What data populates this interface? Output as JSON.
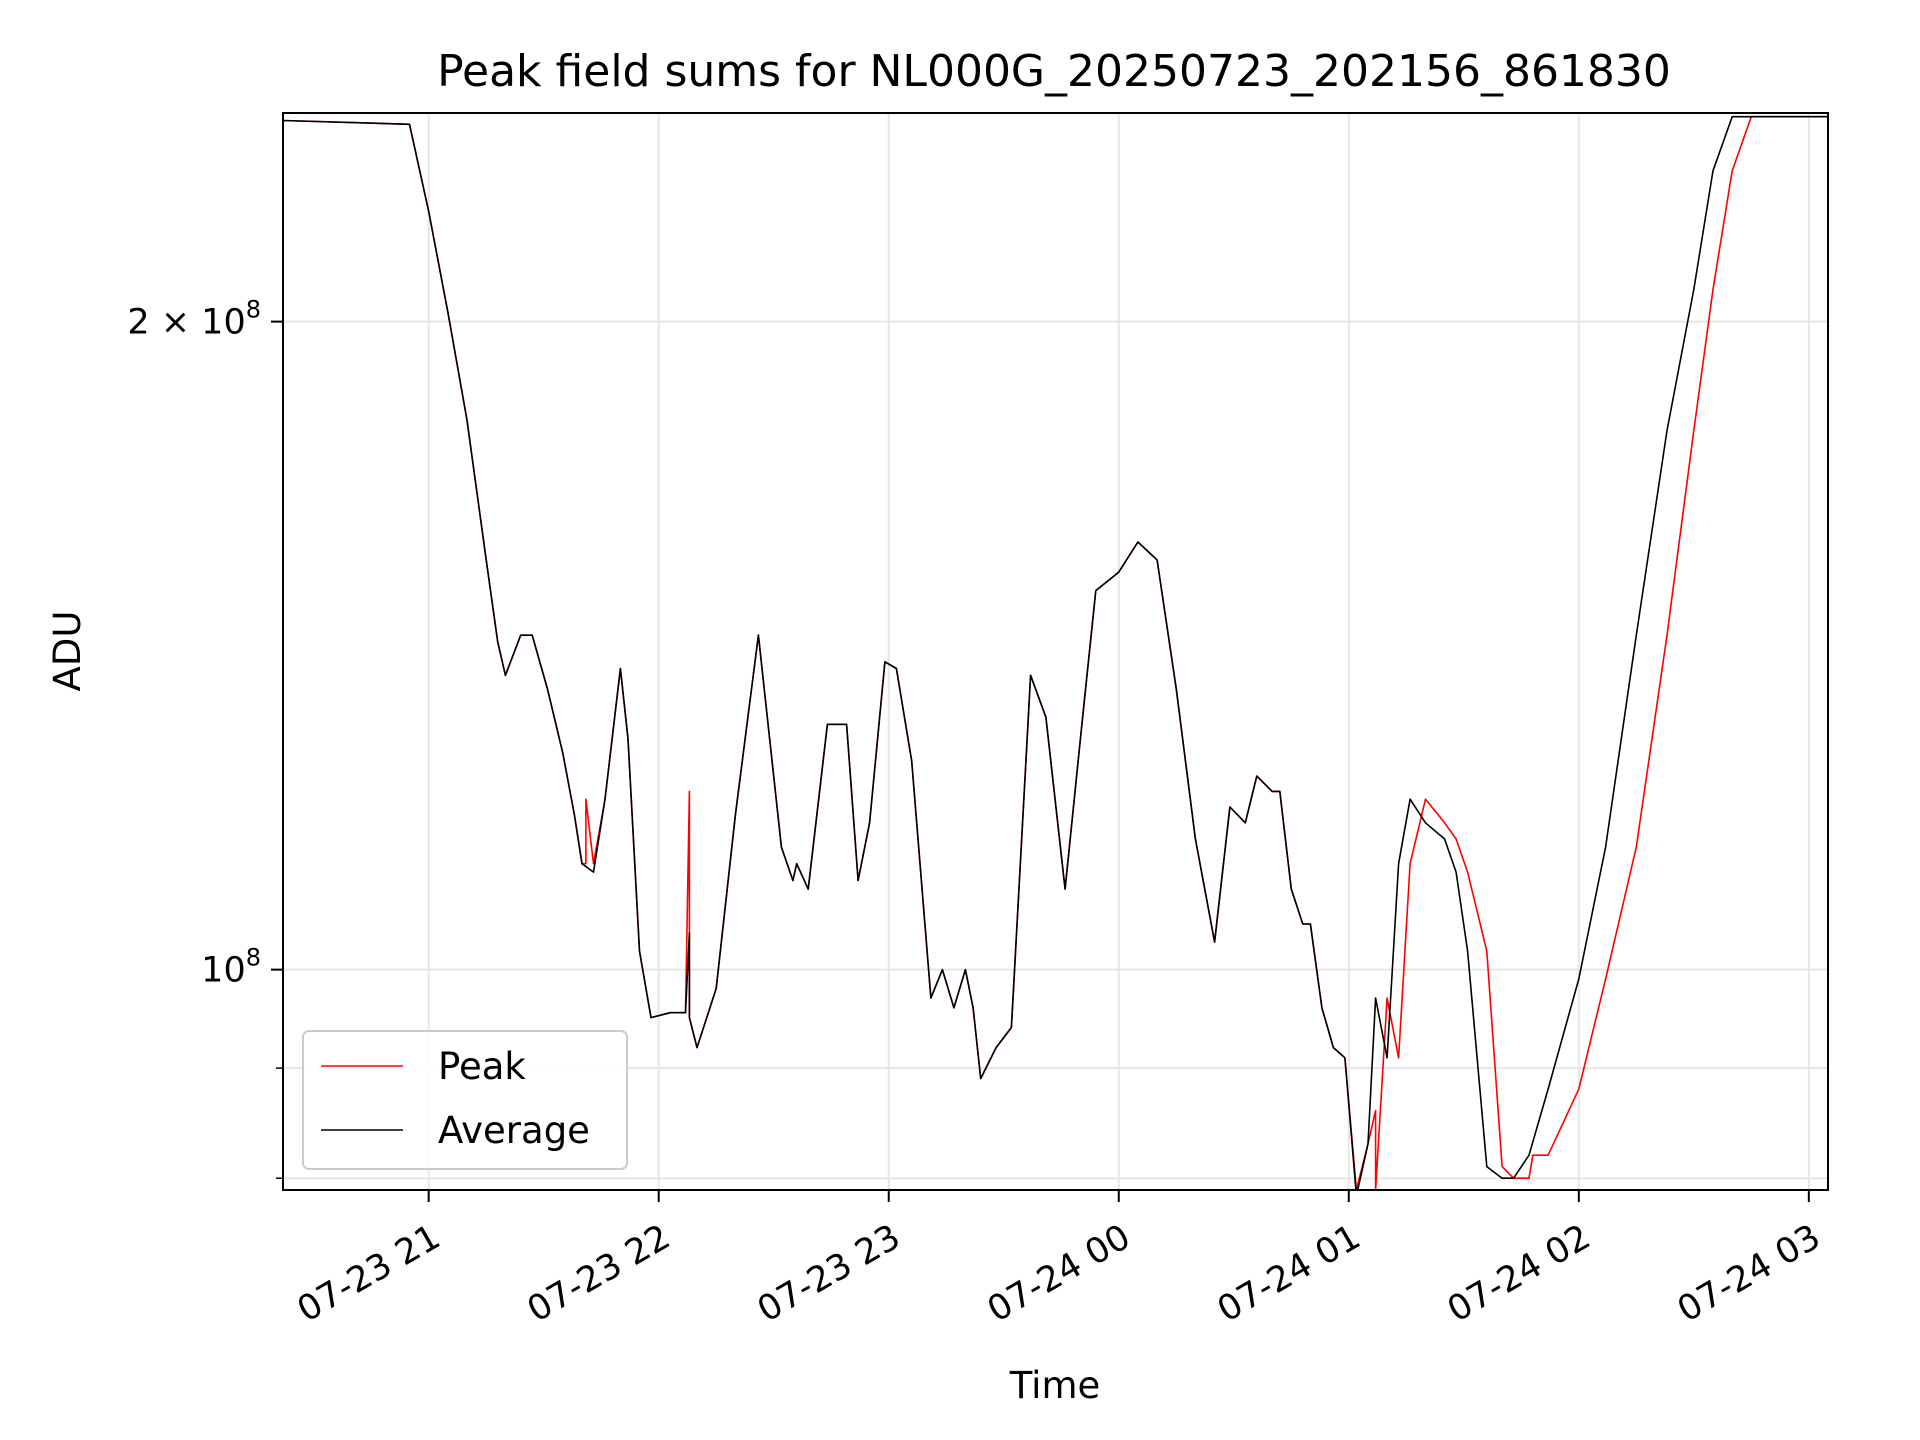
{
  "chart_data": {
    "type": "line",
    "title": "Peak field sums for NL000G_20250723_202156_861830",
    "xlabel": "Time",
    "ylabel": "ADU",
    "y_scale": "log",
    "ylim": [
      79000000,
      250000000
    ],
    "xlim": [
      "2025-07-23 20:22",
      "2025-07-24 03:05"
    ],
    "grid": true,
    "legend_position": "lower-left",
    "x_ticks": [
      {
        "t": "2025-07-23 21:00",
        "label": "07-23 21"
      },
      {
        "t": "2025-07-23 22:00",
        "label": "07-23 22"
      },
      {
        "t": "2025-07-23 23:00",
        "label": "07-23 23"
      },
      {
        "t": "2025-07-24 00:00",
        "label": "07-24 00"
      },
      {
        "t": "2025-07-24 01:00",
        "label": "07-24 01"
      },
      {
        "t": "2025-07-24 02:00",
        "label": "07-24 02"
      },
      {
        "t": "2025-07-24 03:00",
        "label": "07-24 03"
      }
    ],
    "y_major_ticks": [
      {
        "value": 100000000,
        "base": "10",
        "exp": "8"
      },
      {
        "value": 200000000,
        "base": "2 × 10",
        "exp": "8"
      }
    ],
    "y_minor_ticks": [
      80000000,
      90000000
    ],
    "series": [
      {
        "name": "Peak",
        "color": "#ff0000",
        "x": [
          "2025-07-23 20:22",
          "2025-07-23 20:55",
          "2025-07-23 21:00",
          "2025-07-23 21:05",
          "2025-07-23 21:10",
          "2025-07-23 21:15",
          "2025-07-23 21:18",
          "2025-07-23 21:20",
          "2025-07-23 21:24",
          "2025-07-23 21:27",
          "2025-07-23 21:31",
          "2025-07-23 21:35",
          "2025-07-23 21:38",
          "2025-07-23 21:40",
          "2025-07-23 21:41",
          "2025-07-23 21:41",
          "2025-07-23 21:43",
          "2025-07-23 21:46",
          "2025-07-23 21:50",
          "2025-07-23 21:52",
          "2025-07-23 21:55",
          "2025-07-23 21:58",
          "2025-07-23 22:03",
          "2025-07-23 22:07",
          "2025-07-23 22:08",
          "2025-07-23 22:08",
          "2025-07-23 22:10",
          "2025-07-23 22:15",
          "2025-07-23 22:20",
          "2025-07-23 22:26",
          "2025-07-23 22:32",
          "2025-07-23 22:35",
          "2025-07-23 22:36",
          "2025-07-23 22:39",
          "2025-07-23 22:44",
          "2025-07-23 22:49",
          "2025-07-23 22:52",
          "2025-07-23 22:55",
          "2025-07-23 22:59",
          "2025-07-23 23:02",
          "2025-07-23 23:06",
          "2025-07-23 23:11",
          "2025-07-23 23:14",
          "2025-07-23 23:17",
          "2025-07-23 23:20",
          "2025-07-23 23:22",
          "2025-07-23 23:24",
          "2025-07-23 23:28",
          "2025-07-23 23:32",
          "2025-07-23 23:37",
          "2025-07-23 23:41",
          "2025-07-23 23:46",
          "2025-07-23 23:50",
          "2025-07-23 23:54",
          "2025-07-24 00:00",
          "2025-07-24 00:05",
          "2025-07-24 00:10",
          "2025-07-24 00:15",
          "2025-07-24 00:20",
          "2025-07-24 00:25",
          "2025-07-24 00:29",
          "2025-07-24 00:33",
          "2025-07-24 00:36",
          "2025-07-24 00:40",
          "2025-07-24 00:42",
          "2025-07-24 00:45",
          "2025-07-24 00:48",
          "2025-07-24 00:50",
          "2025-07-24 00:53",
          "2025-07-24 00:56",
          "2025-07-24 00:59",
          "2025-07-24 01:02",
          "2025-07-24 01:05",
          "2025-07-24 01:07",
          "2025-07-24 01:07",
          "2025-07-24 01:10",
          "2025-07-24 01:13",
          "2025-07-24 01:16",
          "2025-07-24 01:20",
          "2025-07-24 01:25",
          "2025-07-24 01:28",
          "2025-07-24 01:31",
          "2025-07-24 01:36",
          "2025-07-24 01:40",
          "2025-07-24 01:43",
          "2025-07-24 01:47",
          "2025-07-24 01:48",
          "2025-07-24 01:52",
          "2025-07-24 02:00",
          "2025-07-24 02:07",
          "2025-07-24 02:15",
          "2025-07-24 02:23",
          "2025-07-24 02:30",
          "2025-07-24 02:35",
          "2025-07-24 02:40",
          "2025-07-24 02:45",
          "2025-07-24 03:05"
        ],
        "y": [
          248000000,
          247000000,
          225000000,
          202000000,
          180000000,
          155000000,
          142000000,
          137000000,
          143000000,
          143000000,
          135000000,
          126000000,
          118000000,
          112000000,
          112000000,
          120000000,
          112000000,
          120000000,
          138000000,
          128000000,
          102000000,
          95000000,
          95500000,
          95500000,
          121000000,
          95000000,
          92000000,
          98000000,
          118000000,
          143000000,
          114000000,
          110000000,
          112000000,
          109000000,
          130000000,
          130000000,
          110000000,
          117000000,
          139000000,
          138000000,
          125000000,
          97000000,
          100000000,
          96000000,
          100000000,
          96000000,
          89000000,
          92000000,
          94000000,
          137000000,
          131000000,
          109000000,
          128000000,
          150000000,
          153000000,
          158000000,
          155000000,
          135000000,
          115000000,
          103000000,
          119000000,
          117000000,
          123000000,
          121000000,
          121000000,
          109000000,
          105000000,
          105000000,
          96000000,
          92000000,
          91000000,
          79000000,
          83000000,
          86000000,
          79000000,
          97000000,
          91000000,
          112000000,
          120000000,
          117000000,
          115000000,
          111000000,
          102000000,
          81000000,
          80000000,
          80000000,
          82000000,
          82000000,
          88000000,
          99000000,
          114000000,
          143000000,
          178000000,
          207000000,
          235000000,
          249000000,
          249000000
        ]
      },
      {
        "name": "Average",
        "color": "#000000",
        "x": [
          "2025-07-23 20:22",
          "2025-07-23 20:55",
          "2025-07-23 21:00",
          "2025-07-23 21:05",
          "2025-07-23 21:10",
          "2025-07-23 21:15",
          "2025-07-23 21:18",
          "2025-07-23 21:20",
          "2025-07-23 21:24",
          "2025-07-23 21:27",
          "2025-07-23 21:31",
          "2025-07-23 21:35",
          "2025-07-23 21:38",
          "2025-07-23 21:40",
          "2025-07-23 21:43",
          "2025-07-23 21:46",
          "2025-07-23 21:50",
          "2025-07-23 21:52",
          "2025-07-23 21:55",
          "2025-07-23 21:58",
          "2025-07-23 22:03",
          "2025-07-23 22:07",
          "2025-07-23 22:08",
          "2025-07-23 22:08",
          "2025-07-23 22:10",
          "2025-07-23 22:15",
          "2025-07-23 22:20",
          "2025-07-23 22:26",
          "2025-07-23 22:32",
          "2025-07-23 22:35",
          "2025-07-23 22:36",
          "2025-07-23 22:39",
          "2025-07-23 22:44",
          "2025-07-23 22:49",
          "2025-07-23 22:52",
          "2025-07-23 22:55",
          "2025-07-23 22:59",
          "2025-07-23 23:02",
          "2025-07-23 23:06",
          "2025-07-23 23:11",
          "2025-07-23 23:14",
          "2025-07-23 23:17",
          "2025-07-23 23:20",
          "2025-07-23 23:22",
          "2025-07-23 23:24",
          "2025-07-23 23:28",
          "2025-07-23 23:32",
          "2025-07-23 23:37",
          "2025-07-23 23:41",
          "2025-07-23 23:46",
          "2025-07-23 23:50",
          "2025-07-23 23:54",
          "2025-07-24 00:00",
          "2025-07-24 00:05",
          "2025-07-24 00:10",
          "2025-07-24 00:15",
          "2025-07-24 00:20",
          "2025-07-24 00:25",
          "2025-07-24 00:29",
          "2025-07-24 00:33",
          "2025-07-24 00:36",
          "2025-07-24 00:40",
          "2025-07-24 00:42",
          "2025-07-24 00:45",
          "2025-07-24 00:48",
          "2025-07-24 00:50",
          "2025-07-24 00:53",
          "2025-07-24 00:56",
          "2025-07-24 00:59",
          "2025-07-24 01:02",
          "2025-07-24 01:05",
          "2025-07-24 01:07",
          "2025-07-24 01:10",
          "2025-07-24 01:13",
          "2025-07-24 01:16",
          "2025-07-24 01:20",
          "2025-07-24 01:25",
          "2025-07-24 01:28",
          "2025-07-24 01:31",
          "2025-07-24 01:36",
          "2025-07-24 01:40",
          "2025-07-24 01:43",
          "2025-07-24 01:47",
          "2025-07-24 01:52",
          "2025-07-24 02:00",
          "2025-07-24 02:07",
          "2025-07-24 02:15",
          "2025-07-24 02:23",
          "2025-07-24 02:30",
          "2025-07-24 02:35",
          "2025-07-24 02:40",
          "2025-07-24 02:45",
          "2025-07-24 03:05"
        ],
        "y": [
          248000000,
          247000000,
          225000000,
          202000000,
          180000000,
          155000000,
          142000000,
          137000000,
          143000000,
          143000000,
          135000000,
          126000000,
          118000000,
          112000000,
          111000000,
          120000000,
          138000000,
          128000000,
          102000000,
          95000000,
          95500000,
          95500000,
          104000000,
          95000000,
          92000000,
          98000000,
          118000000,
          143000000,
          114000000,
          110000000,
          112000000,
          109000000,
          130000000,
          130000000,
          110000000,
          117000000,
          139000000,
          138000000,
          125000000,
          97000000,
          100000000,
          96000000,
          100000000,
          96000000,
          89000000,
          92000000,
          94000000,
          137000000,
          131000000,
          109000000,
          128000000,
          150000000,
          153000000,
          158000000,
          155000000,
          135000000,
          115000000,
          103000000,
          119000000,
          117000000,
          123000000,
          121000000,
          121000000,
          109000000,
          105000000,
          105000000,
          96000000,
          92000000,
          91000000,
          78500000,
          83000000,
          97000000,
          91000000,
          112000000,
          120000000,
          117000000,
          115000000,
          111000000,
          102000000,
          81000000,
          80000000,
          80000000,
          82000000,
          88000000,
          99000000,
          114000000,
          143000000,
          178000000,
          207000000,
          235000000,
          249000000,
          249000000,
          249000000
        ]
      }
    ]
  }
}
